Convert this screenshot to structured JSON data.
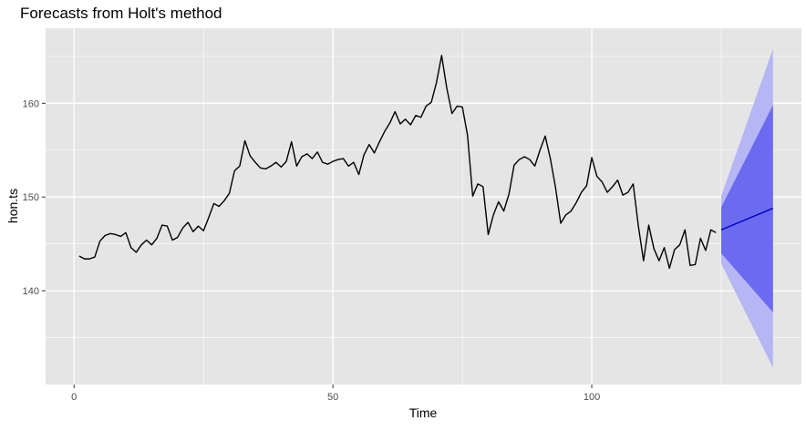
{
  "chart_data": {
    "type": "line",
    "title": "Forecasts from Holt's method",
    "xlabel": "Time",
    "ylabel": "hon.ts",
    "xlim": [
      -5.5,
      140.5
    ],
    "ylim": [
      130,
      168
    ],
    "x_ticks": [
      0,
      50,
      100
    ],
    "y_ticks": [
      140,
      150,
      160
    ],
    "x_tick_labels": [
      "0",
      "50",
      "100"
    ],
    "y_tick_labels": [
      "140",
      "150",
      "160"
    ],
    "grid": true,
    "colors": {
      "panel": "#e5e5e5",
      "grid": "#ffffff",
      "observed": "#000000",
      "forecast": "#0000cc",
      "pi80": "#6b6bef",
      "pi95": "#b6b6f4"
    },
    "observed": {
      "x_start": 1,
      "values": [
        143.7,
        143.4,
        143.4,
        143.6,
        145.3,
        145.9,
        146.1,
        146.0,
        145.8,
        146.2,
        144.6,
        144.1,
        144.9,
        145.4,
        144.9,
        145.6,
        147.0,
        146.9,
        145.4,
        145.7,
        146.7,
        147.3,
        146.3,
        146.9,
        146.4,
        147.8,
        149.3,
        149.0,
        149.6,
        150.4,
        152.8,
        153.3,
        156.0,
        154.4,
        153.7,
        153.1,
        153.0,
        153.3,
        153.7,
        153.2,
        153.8,
        155.9,
        153.3,
        154.3,
        154.6,
        154.1,
        154.8,
        153.7,
        153.5,
        153.8,
        154.0,
        154.1,
        153.3,
        153.7,
        152.4,
        154.5,
        155.6,
        154.7,
        155.9,
        157.0,
        157.9,
        159.1,
        157.8,
        158.3,
        157.7,
        158.7,
        158.5,
        159.7,
        160.1,
        162.2,
        165.1,
        161.6,
        158.9,
        159.7,
        159.6,
        156.6,
        150.1,
        151.4,
        151.1,
        146.0,
        148.1,
        149.5,
        148.5,
        150.3,
        153.4,
        154.0,
        154.3,
        154.0,
        153.3,
        155.0,
        156.5,
        154.1,
        151.0,
        147.2,
        148.1,
        148.5,
        149.4,
        150.5,
        151.2,
        154.2,
        152.2,
        151.6,
        150.5,
        151.1,
        151.8,
        150.2,
        150.5,
        151.4,
        146.9,
        143.2,
        147.0,
        144.5,
        143.2,
        144.6,
        142.4,
        144.4,
        144.9,
        146.5,
        142.7,
        142.8,
        145.6,
        144.3,
        146.5,
        146.2
      ]
    },
    "forecast": {
      "x": [
        125,
        135
      ],
      "mean": [
        146.5,
        148.8
      ],
      "lo80": [
        144.0,
        137.7
      ],
      "hi80": [
        148.9,
        159.8
      ],
      "lo95": [
        142.9,
        131.8
      ],
      "hi95": [
        150.1,
        165.8
      ]
    }
  }
}
